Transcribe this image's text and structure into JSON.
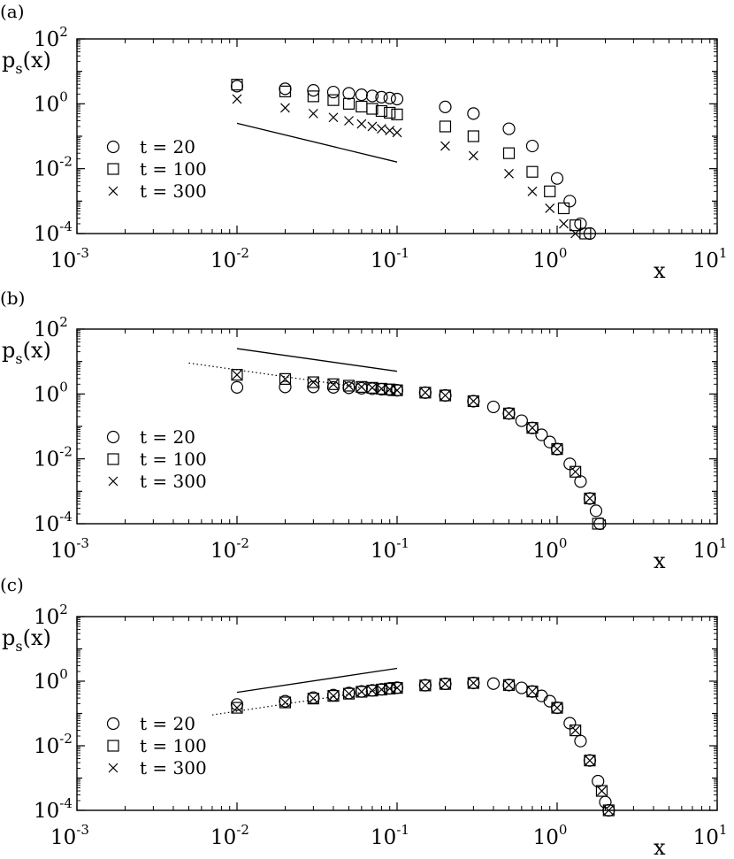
{
  "chart_data": [
    {
      "panel_label": "(a)",
      "type": "scatter",
      "xscale": "log",
      "yscale": "log",
      "xlim": [
        0.001,
        10
      ],
      "ylim": [
        0.0001,
        100
      ],
      "x_ticks": [
        "-3",
        "-2",
        "-1",
        "0",
        "1"
      ],
      "y_ticks": [
        "-4",
        "-2",
        "0",
        "2"
      ],
      "ylabel_main": "p",
      "ylabel_sub": "s",
      "ylabel_rest": "(x)",
      "xlabel": "x",
      "legend": {
        "position": "lower-left",
        "entries": [
          "t = 20",
          "t = 100",
          "t = 300"
        ]
      },
      "series": [
        {
          "name": "t = 20",
          "marker": "circle",
          "x": [
            0.01,
            0.02,
            0.03,
            0.04,
            0.05,
            0.06,
            0.07,
            0.08,
            0.09,
            0.1,
            0.2,
            0.3,
            0.5,
            0.7,
            1.0,
            1.2,
            1.4,
            1.6
          ],
          "y": [
            3.5,
            2.9,
            2.6,
            2.3,
            2.1,
            1.9,
            1.75,
            1.6,
            1.5,
            1.4,
            0.8,
            0.5,
            0.17,
            0.05,
            0.005,
            0.001,
            0.0002,
            0.0001
          ]
        },
        {
          "name": "t = 100",
          "marker": "square",
          "x": [
            0.01,
            0.02,
            0.03,
            0.04,
            0.05,
            0.06,
            0.07,
            0.08,
            0.09,
            0.1,
            0.2,
            0.3,
            0.5,
            0.7,
            0.9,
            1.1,
            1.3,
            1.5
          ],
          "y": [
            3.9,
            2.4,
            1.7,
            1.3,
            1.0,
            0.82,
            0.7,
            0.6,
            0.53,
            0.47,
            0.2,
            0.1,
            0.03,
            0.008,
            0.002,
            0.0006,
            0.00018,
            0.0001
          ]
        },
        {
          "name": "t = 300",
          "marker": "cross",
          "x": [
            0.01,
            0.02,
            0.03,
            0.04,
            0.05,
            0.06,
            0.07,
            0.08,
            0.09,
            0.1,
            0.2,
            0.3,
            0.5,
            0.7,
            0.9,
            1.1,
            1.3
          ],
          "y": [
            1.4,
            0.75,
            0.5,
            0.38,
            0.3,
            0.24,
            0.2,
            0.17,
            0.15,
            0.13,
            0.05,
            0.025,
            0.007,
            0.002,
            0.0006,
            0.0002,
            0.0001
          ]
        }
      ],
      "lines": [
        {
          "style": "solid",
          "x": [
            0.01,
            0.1
          ],
          "y": [
            0.25,
            0.016
          ]
        }
      ]
    },
    {
      "panel_label": "(b)",
      "type": "scatter",
      "xscale": "log",
      "yscale": "log",
      "xlim": [
        0.001,
        10
      ],
      "ylim": [
        0.0001,
        100
      ],
      "x_ticks": [
        "-3",
        "-2",
        "-1",
        "0",
        "1"
      ],
      "y_ticks": [
        "-4",
        "-2",
        "0",
        "2"
      ],
      "ylabel_main": "p",
      "ylabel_sub": "s",
      "ylabel_rest": "(x)",
      "xlabel": "x",
      "legend": {
        "position": "lower-left",
        "entries": [
          "t = 20",
          "t = 100",
          "t = 300"
        ]
      },
      "series": [
        {
          "name": "t = 20",
          "marker": "circle",
          "x": [
            0.01,
            0.02,
            0.03,
            0.04,
            0.05,
            0.06,
            0.07,
            0.08,
            0.09,
            0.1,
            0.15,
            0.2,
            0.3,
            0.4,
            0.5,
            0.6,
            0.7,
            0.8,
            0.9,
            1.0,
            1.2,
            1.4,
            1.6,
            1.75,
            1.85
          ],
          "y": [
            1.6,
            1.65,
            1.65,
            1.6,
            1.55,
            1.5,
            1.45,
            1.4,
            1.35,
            1.3,
            1.1,
            0.9,
            0.6,
            0.4,
            0.25,
            0.15,
            0.09,
            0.055,
            0.033,
            0.02,
            0.007,
            0.002,
            0.0006,
            0.00025,
            0.0001
          ]
        },
        {
          "name": "t = 100",
          "marker": "square",
          "x": [
            0.01,
            0.02,
            0.03,
            0.04,
            0.05,
            0.06,
            0.07,
            0.08,
            0.09,
            0.1,
            0.15,
            0.2,
            0.3,
            0.5,
            0.7,
            1.0,
            1.3,
            1.6,
            1.8
          ],
          "y": [
            3.9,
            2.9,
            2.3,
            2.0,
            1.8,
            1.65,
            1.55,
            1.45,
            1.38,
            1.3,
            1.1,
            0.9,
            0.6,
            0.25,
            0.09,
            0.02,
            0.004,
            0.0006,
            0.0001
          ]
        },
        {
          "name": "t = 300",
          "marker": "cross",
          "x": [
            0.01,
            0.02,
            0.03,
            0.04,
            0.05,
            0.06,
            0.07,
            0.08,
            0.09,
            0.1,
            0.15,
            0.2,
            0.3,
            0.5,
            0.7,
            1.0,
            1.3,
            1.6
          ],
          "y": [
            3.9,
            2.9,
            2.3,
            2.0,
            1.8,
            1.65,
            1.55,
            1.45,
            1.38,
            1.3,
            1.1,
            0.9,
            0.6,
            0.25,
            0.09,
            0.02,
            0.004,
            0.0006
          ]
        }
      ],
      "lines": [
        {
          "style": "solid",
          "x": [
            0.01,
            0.1
          ],
          "y": [
            25,
            5
          ]
        },
        {
          "style": "dotted",
          "x": [
            0.005,
            0.1
          ],
          "y": [
            9,
            1.1
          ]
        }
      ]
    },
    {
      "panel_label": "(c)",
      "type": "scatter",
      "xscale": "log",
      "yscale": "log",
      "xlim": [
        0.001,
        10
      ],
      "ylim": [
        0.0001,
        100
      ],
      "x_ticks": [
        "-3",
        "-2",
        "-1",
        "0",
        "1"
      ],
      "y_ticks": [
        "-4",
        "-2",
        "0",
        "2"
      ],
      "ylabel_main": "p",
      "ylabel_sub": "s",
      "ylabel_rest": "(x)",
      "xlabel": "x",
      "legend": {
        "position": "lower-left",
        "entries": [
          "t = 20",
          "t = 100",
          "t = 300"
        ]
      },
      "series": [
        {
          "name": "t = 20",
          "marker": "circle",
          "x": [
            0.01,
            0.02,
            0.03,
            0.04,
            0.05,
            0.06,
            0.07,
            0.08,
            0.09,
            0.1,
            0.15,
            0.2,
            0.3,
            0.4,
            0.5,
            0.6,
            0.7,
            0.8,
            0.9,
            1.0,
            1.2,
            1.4,
            1.6,
            1.8,
            2.0,
            2.1
          ],
          "y": [
            0.19,
            0.24,
            0.31,
            0.37,
            0.43,
            0.48,
            0.52,
            0.56,
            0.6,
            0.63,
            0.75,
            0.83,
            0.88,
            0.84,
            0.76,
            0.62,
            0.48,
            0.35,
            0.24,
            0.15,
            0.05,
            0.014,
            0.0035,
            0.0008,
            0.00018,
            0.0001
          ]
        },
        {
          "name": "t = 100",
          "marker": "square",
          "x": [
            0.01,
            0.02,
            0.03,
            0.04,
            0.05,
            0.06,
            0.07,
            0.08,
            0.09,
            0.1,
            0.15,
            0.2,
            0.3,
            0.5,
            0.7,
            1.0,
            1.3,
            1.6,
            1.9,
            2.1
          ],
          "y": [
            0.15,
            0.22,
            0.29,
            0.35,
            0.41,
            0.47,
            0.51,
            0.55,
            0.59,
            0.62,
            0.74,
            0.82,
            0.88,
            0.76,
            0.48,
            0.15,
            0.03,
            0.0035,
            0.0004,
            0.0001
          ]
        },
        {
          "name": "t = 300",
          "marker": "cross",
          "x": [
            0.01,
            0.02,
            0.03,
            0.04,
            0.05,
            0.06,
            0.07,
            0.08,
            0.09,
            0.1,
            0.15,
            0.2,
            0.3,
            0.5,
            0.7,
            1.0,
            1.3,
            1.6,
            1.9,
            2.1
          ],
          "y": [
            0.15,
            0.22,
            0.29,
            0.35,
            0.41,
            0.47,
            0.51,
            0.55,
            0.59,
            0.62,
            0.74,
            0.82,
            0.88,
            0.76,
            0.48,
            0.15,
            0.03,
            0.0035,
            0.0004,
            0.0001
          ]
        }
      ],
      "lines": [
        {
          "style": "solid",
          "x": [
            0.01,
            0.1
          ],
          "y": [
            0.45,
            2.5
          ]
        },
        {
          "style": "dotted",
          "x": [
            0.007,
            0.1
          ],
          "y": [
            0.09,
            0.65
          ]
        }
      ]
    }
  ]
}
